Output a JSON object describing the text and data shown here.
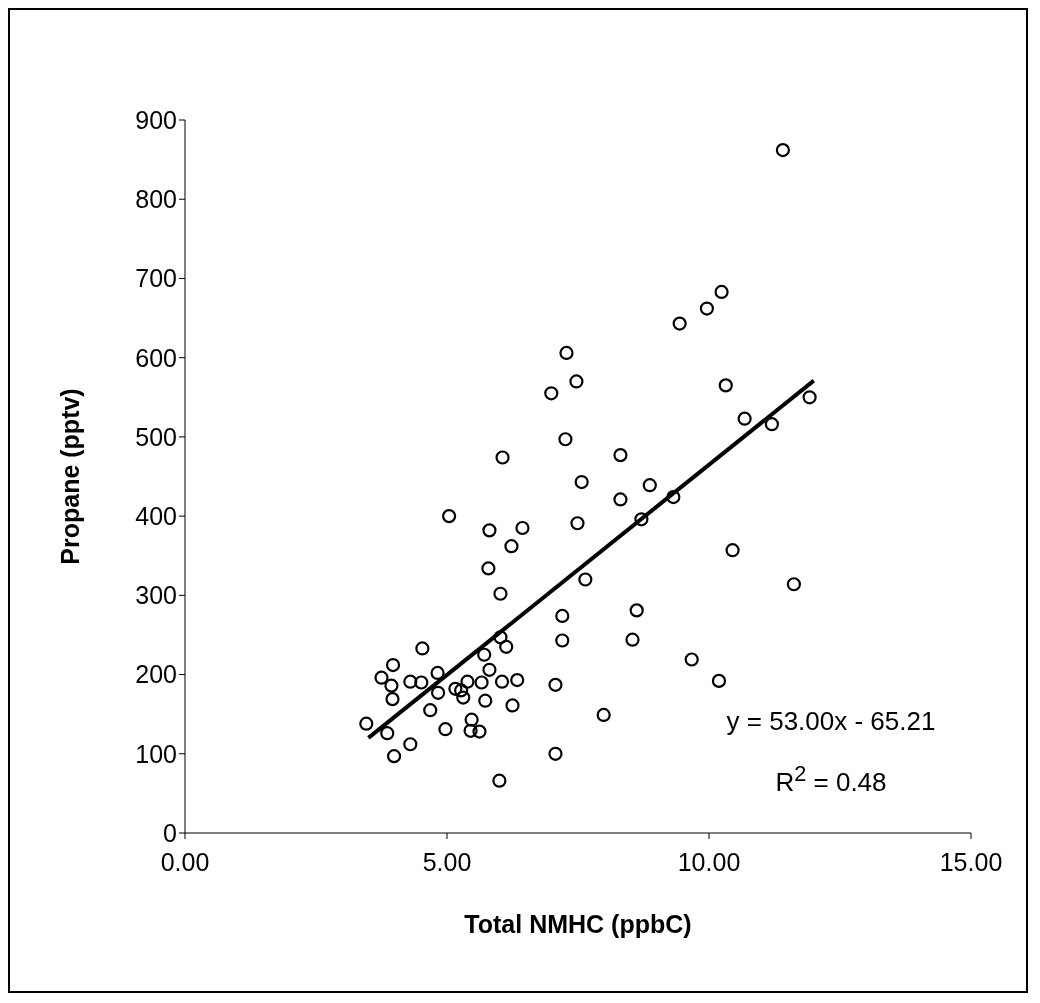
{
  "chart_data": {
    "type": "scatter",
    "xlabel": "Total NMHC (ppbC)",
    "ylabel": "Propane (pptv)",
    "xlim": [
      0,
      15
    ],
    "xticks": [
      {
        "value": 0,
        "label": "0.00"
      },
      {
        "value": 5,
        "label": "5.00"
      },
      {
        "value": 10,
        "label": "10.00"
      },
      {
        "value": 15,
        "label": "15.00"
      }
    ],
    "ylim": [
      0,
      900
    ],
    "yticks": [
      0,
      100,
      200,
      300,
      400,
      500,
      600,
      700,
      800,
      900
    ],
    "grid": false,
    "marker": "circle",
    "series": [
      {
        "color": "#000000",
        "x": [
          5.04,
          5.81,
          6.44,
          6.23,
          5.79,
          6.02,
          7.49,
          7.64,
          8.31,
          8.71,
          7.2,
          7.2,
          8.62,
          8.54,
          7.07,
          7.99,
          7.07,
          6.0,
          4.53,
          3.97,
          3.75,
          3.94,
          3.96,
          4.3,
          4.51,
          4.82,
          4.83,
          4.68,
          3.46,
          3.86,
          4.3,
          3.99,
          4.97,
          5.16,
          5.27,
          5.31,
          5.39,
          5.66,
          5.81,
          5.71,
          6.02,
          6.13,
          6.05,
          6.34,
          5.73,
          6.25,
          5.47,
          5.45,
          5.62,
          7.57,
          8.87,
          11.41,
          9.44,
          9.96,
          10.24,
          10.32,
          10.68,
          11.2,
          11.92,
          8.31,
          9.32,
          10.45,
          11.62,
          9.67,
          10.19,
          7.28,
          7.47,
          6.99,
          7.26,
          6.06
        ],
        "values": [
          400,
          382,
          385,
          362,
          334,
          302,
          391,
          320,
          421,
          396,
          274,
          243,
          281,
          244,
          187,
          149,
          100,
          66,
          233,
          212,
          196,
          186,
          169,
          191,
          190,
          202,
          177,
          155,
          138,
          126,
          112,
          97,
          131,
          182,
          180,
          171,
          191,
          190,
          206,
          225,
          247,
          235,
          191,
          193,
          167,
          161,
          143,
          129,
          128,
          443,
          439,
          862,
          643,
          662,
          683,
          565,
          523,
          516,
          550,
          477,
          424,
          357,
          314,
          219,
          192,
          606,
          570,
          555,
          497,
          474
        ]
      },
      {
        "type": "line",
        "color": "#000000",
        "x": [
          3.5,
          12
        ],
        "values": [
          120,
          571
        ],
        "marker": "none",
        "line_style": "solid"
      }
    ],
    "annotations": [
      "y = 53.00x - 65.21",
      "R$^{2}$ = 0.48"
    ]
  }
}
